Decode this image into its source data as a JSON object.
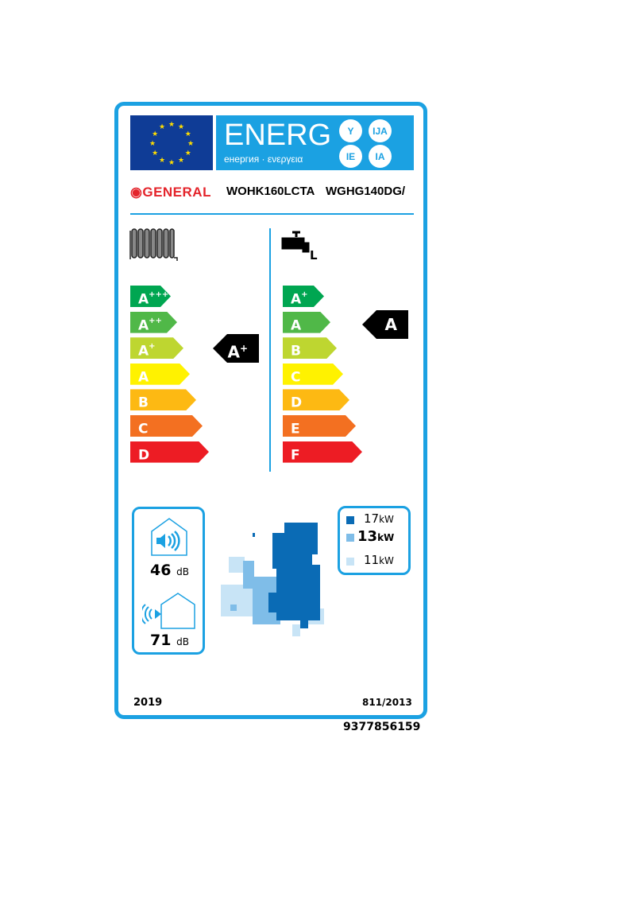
{
  "header": {
    "energy_word": "ENERG",
    "subtitle": "енергия · ενεργεια",
    "suffixes": [
      "Y",
      "IJA",
      "IE",
      "IA"
    ]
  },
  "brand": "GENERAL",
  "models": [
    "WOHK160LCTA",
    "WGHG140DG/"
  ],
  "space_heating": {
    "icon": "radiator-icon",
    "scale": [
      {
        "l": "A",
        "s": "+++",
        "c": "#00a651"
      },
      {
        "l": "A",
        "s": "++",
        "c": "#50b848"
      },
      {
        "l": "A",
        "s": "+",
        "c": "#bed630"
      },
      {
        "l": "A",
        "s": "",
        "c": "#fff200"
      },
      {
        "l": "B",
        "s": "",
        "c": "#fdb913"
      },
      {
        "l": "C",
        "s": "",
        "c": "#f37021"
      },
      {
        "l": "D",
        "s": "",
        "c": "#ed1c24"
      }
    ],
    "rating": "A",
    "rating_sup": "+"
  },
  "water_heating": {
    "icon": "tap-icon",
    "profile": "L",
    "scale": [
      {
        "l": "A",
        "s": "+",
        "c": "#00a651"
      },
      {
        "l": "A",
        "s": "",
        "c": "#50b848"
      },
      {
        "l": "B",
        "s": "",
        "c": "#bed630"
      },
      {
        "l": "C",
        "s": "",
        "c": "#fff200"
      },
      {
        "l": "D",
        "s": "",
        "c": "#fdb913"
      },
      {
        "l": "E",
        "s": "",
        "c": "#f37021"
      },
      {
        "l": "F",
        "s": "",
        "c": "#ed1c24"
      }
    ],
    "rating": "A"
  },
  "noise": {
    "indoor": "46",
    "outdoor": "71",
    "unit": "dB"
  },
  "climate": [
    {
      "value": "17",
      "unit": "kW",
      "color": "#0a6bb5"
    },
    {
      "value": "13",
      "unit": "kW",
      "color": "#7fbde8"
    },
    {
      "value": "11",
      "unit": "kW",
      "color": "#c8e4f6"
    }
  ],
  "footer": {
    "year": "2019",
    "regulation": "811/2013",
    "code": "9377856159"
  },
  "colors": {
    "accent": "#1ba1e2",
    "eu_blue": "#0f3c96",
    "brand_red": "#e4242b"
  }
}
